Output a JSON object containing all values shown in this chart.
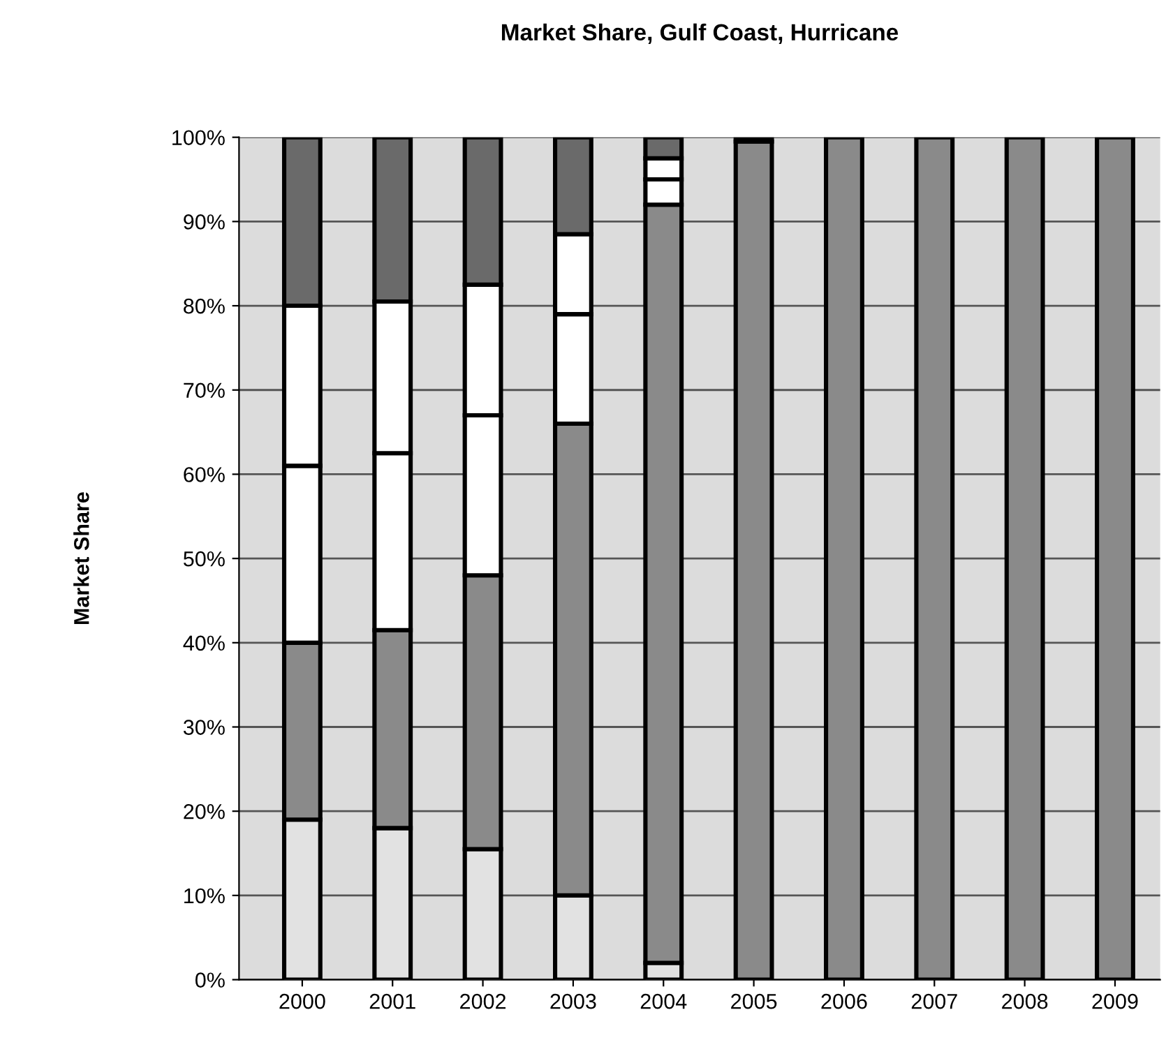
{
  "chart_data": {
    "type": "bar",
    "title": "Market Share, Gulf Coast, Hurricane",
    "ylabel": "Market Share",
    "stacked": true,
    "categories": [
      "2000",
      "2001",
      "2002",
      "2003",
      "2004",
      "2005",
      "2006",
      "2007",
      "2008",
      "2009"
    ],
    "series": [
      {
        "color": "#e2e2e2",
        "values": [
          19,
          18,
          15.5,
          10,
          2,
          0,
          0,
          0,
          0,
          0
        ]
      },
      {
        "color": "#8a8a8a",
        "values": [
          21,
          23.5,
          32.5,
          56,
          90,
          99.5,
          100,
          100,
          100,
          100
        ]
      },
      {
        "color": "#ffffff",
        "values": [
          21,
          21,
          19,
          13,
          3,
          0,
          0,
          0,
          0,
          0
        ]
      },
      {
        "color": "#ffffff",
        "values": [
          19,
          18,
          15.5,
          9.5,
          2.5,
          0,
          0,
          0,
          0,
          0
        ]
      },
      {
        "color": "#6a6a6a",
        "values": [
          20,
          19.5,
          17.5,
          11.5,
          2.5,
          0.5,
          0,
          0,
          0,
          0
        ]
      }
    ],
    "ylim": [
      0,
      100
    ],
    "yticks": [
      {
        "value": 0,
        "label": "0%"
      },
      {
        "value": 10,
        "label": "10%"
      },
      {
        "value": 20,
        "label": "20%"
      },
      {
        "value": 30,
        "label": "30%"
      },
      {
        "value": 40,
        "label": "40%"
      },
      {
        "value": 50,
        "label": "50%"
      },
      {
        "value": 60,
        "label": "60%"
      },
      {
        "value": 70,
        "label": "70%"
      },
      {
        "value": 80,
        "label": "80%"
      },
      {
        "value": 90,
        "label": "90%"
      },
      {
        "value": 100,
        "label": "100%"
      }
    ],
    "grid": "y"
  }
}
